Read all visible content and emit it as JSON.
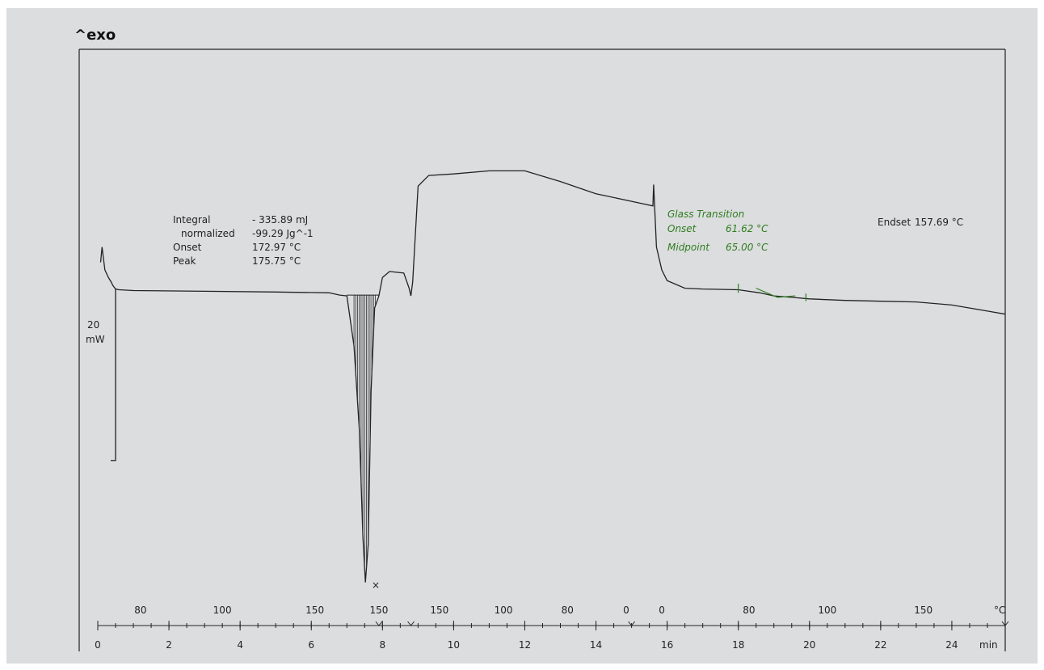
{
  "chart_data": {
    "type": "line",
    "title": "^exo",
    "ylabel_value": "20",
    "ylabel_unit": "mW",
    "x_unit": "min",
    "temp_unit": "°C",
    "xlim": [
      0,
      25.5
    ],
    "ylim": [
      -10,
      25
    ],
    "x_ticks": [
      "0",
      "2",
      "4",
      "6",
      "8",
      "10",
      "12",
      "14",
      "16",
      "18",
      "20",
      "22",
      "24"
    ],
    "temp_labels": [
      {
        "t": 1.2,
        "text": "80"
      },
      {
        "t": 3.5,
        "text": "100"
      },
      {
        "t": 6.1,
        "text": "150"
      },
      {
        "t": 7.9,
        "text": "150"
      },
      {
        "t": 9.6,
        "text": "150"
      },
      {
        "t": 11.4,
        "text": "100"
      },
      {
        "t": 13.2,
        "text": "80"
      },
      {
        "t": 14.85,
        "text": "0"
      },
      {
        "t": 15.85,
        "text": "0"
      },
      {
        "t": 18.3,
        "text": "80"
      },
      {
        "t": 20.5,
        "text": "100"
      },
      {
        "t": 23.2,
        "text": "150"
      }
    ],
    "series": [
      {
        "color": "#222222",
        "x": [
          0.08,
          0.12,
          0.2,
          0.3,
          0.38,
          0.42,
          0.45,
          0.5,
          0.6,
          1.0,
          3.0,
          5.0,
          6.5,
          6.8,
          7.0,
          7.2,
          7.35,
          7.45,
          7.52,
          7.6,
          7.68,
          7.78,
          7.9,
          8.0,
          8.2,
          8.6,
          8.75,
          8.8,
          8.85,
          9.0,
          9.3,
          10.0,
          11.0,
          12.0,
          13.0,
          14.0,
          15.0,
          15.6,
          15.62,
          15.7,
          15.85,
          16.0,
          16.5,
          17.0,
          18.0,
          18.6,
          19.0,
          19.5,
          20.0,
          21.0,
          22.0,
          23.0,
          24.0,
          24.5,
          25.0,
          25.5
        ],
        "y": [
          11.5,
          12.5,
          11.0,
          10.5,
          10.2,
          10.0,
          9.9,
          9.75,
          9.7,
          9.65,
          9.6,
          9.55,
          9.5,
          9.35,
          9.3,
          6.0,
          0.5,
          -6.5,
          -9.5,
          -7.0,
          3.0,
          8.5,
          9.3,
          10.5,
          10.9,
          10.8,
          9.8,
          9.3,
          10.2,
          16.5,
          17.2,
          17.3,
          17.5,
          17.5,
          16.8,
          16.0,
          15.5,
          15.2,
          16.6,
          12.5,
          11.0,
          10.3,
          9.8,
          9.75,
          9.7,
          9.5,
          9.3,
          9.2,
          9.1,
          9.0,
          8.95,
          8.9,
          8.7,
          8.5,
          8.3,
          8.1
        ]
      }
    ],
    "left_drop": {
      "x": 0.5,
      "y_top": 9.75,
      "y_bottom": -1.5
    },
    "annotations": {
      "integral_label": "Integral",
      "integral_value": "- 335.89 mJ",
      "normalized_label": "normalized",
      "normalized_value": "-99.29 Jg^-1",
      "onset_label": "Onset",
      "onset_value": "172.97 °C",
      "peak_label": "Peak",
      "peak_value": "175.75 °C",
      "glass_title": "Glass Transition",
      "glass_onset_label": "Onset",
      "glass_onset_value": "61.62 °C",
      "glass_midpoint_label": "Midpoint",
      "glass_midpoint_value": "65.00 °C",
      "endset_label": "Endset",
      "endset_value": "157.69 °C"
    },
    "colors": {
      "background": "#dcdddf",
      "curve": "#222222",
      "annotation_green": "#2e7d1e"
    }
  }
}
